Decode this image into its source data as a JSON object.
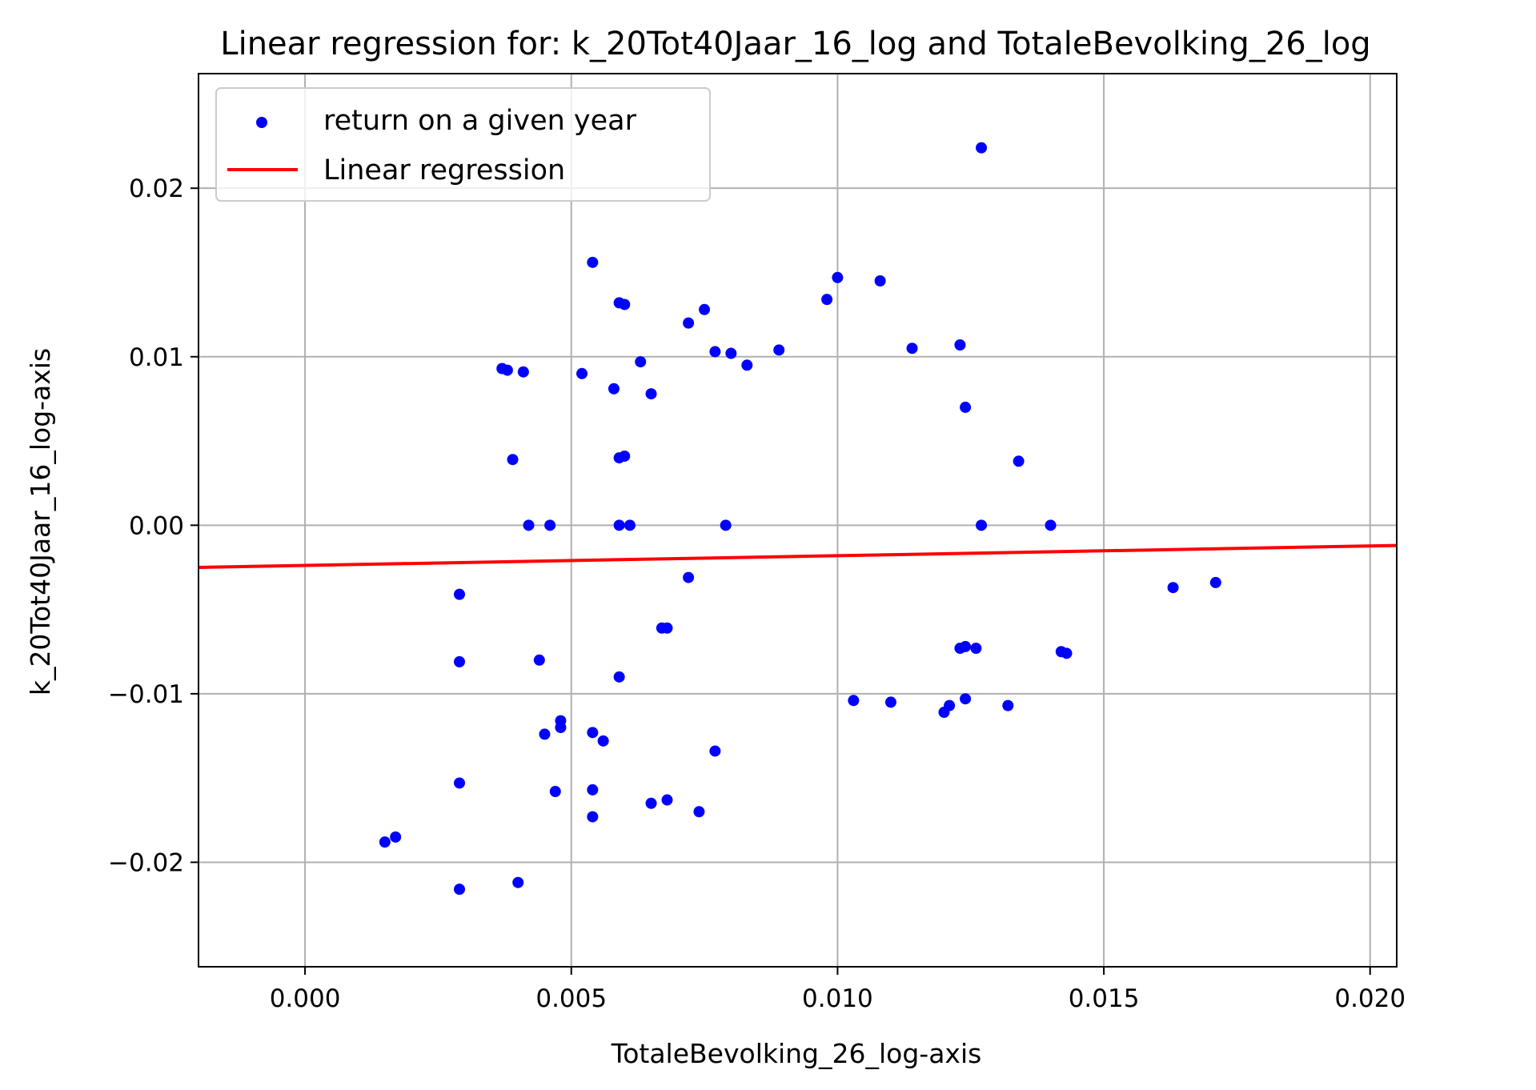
{
  "chart_data": {
    "type": "scatter",
    "title": "Linear regression for: k_20Tot40Jaar_16_log and TotaleBevolking_26_log",
    "xlabel": "TotaleBevolking_26_log-axis",
    "ylabel": "k_20Tot40Jaar_16_log-axis",
    "xlim": [
      -0.002,
      0.0205
    ],
    "ylim": [
      -0.0262,
      0.0268
    ],
    "grid": true,
    "legend_position": "upper-left",
    "x_ticks": [
      0.0,
      0.005,
      0.01,
      0.015,
      0.02
    ],
    "x_tick_labels": [
      "0.000",
      "0.005",
      "0.010",
      "0.015",
      "0.020"
    ],
    "y_ticks": [
      -0.02,
      -0.01,
      0.0,
      0.01,
      0.02
    ],
    "y_tick_labels": [
      "−0.02",
      "−0.01",
      "0.00",
      "0.01",
      "0.02"
    ],
    "series": [
      {
        "name": "return on a given year",
        "kind": "scatter",
        "color": "#0000ff",
        "points": [
          [
            0.0127,
            0.0224
          ],
          [
            0.0054,
            0.0156
          ],
          [
            0.01,
            0.0147
          ],
          [
            0.0108,
            0.0145
          ],
          [
            0.0098,
            0.0134
          ],
          [
            0.0059,
            0.0132
          ],
          [
            0.006,
            0.0131
          ],
          [
            0.0075,
            0.0128
          ],
          [
            0.0072,
            0.012
          ],
          [
            0.0123,
            0.0107
          ],
          [
            0.0114,
            0.0105
          ],
          [
            0.0089,
            0.0104
          ],
          [
            0.0077,
            0.0103
          ],
          [
            0.008,
            0.0102
          ],
          [
            0.0063,
            0.0097
          ],
          [
            0.0083,
            0.0095
          ],
          [
            0.0037,
            0.0093
          ],
          [
            0.0038,
            0.0092
          ],
          [
            0.0041,
            0.0091
          ],
          [
            0.0052,
            0.009
          ],
          [
            0.0058,
            0.0081
          ],
          [
            0.0065,
            0.0078
          ],
          [
            0.0124,
            0.007
          ],
          [
            0.006,
            0.0041
          ],
          [
            0.0059,
            0.004
          ],
          [
            0.0039,
            0.0039
          ],
          [
            0.0134,
            0.0038
          ],
          [
            0.0042,
            0.0
          ],
          [
            0.0046,
            0.0
          ],
          [
            0.0059,
            0.0
          ],
          [
            0.0061,
            0.0
          ],
          [
            0.0079,
            0.0
          ],
          [
            0.0127,
            0.0
          ],
          [
            0.014,
            0.0
          ],
          [
            0.0072,
            -0.0031
          ],
          [
            0.0163,
            -0.0037
          ],
          [
            0.0171,
            -0.0034
          ],
          [
            0.0029,
            -0.0041
          ],
          [
            0.0067,
            -0.0061
          ],
          [
            0.0068,
            -0.0061
          ],
          [
            0.0123,
            -0.0073
          ],
          [
            0.0124,
            -0.0072
          ],
          [
            0.0126,
            -0.0073
          ],
          [
            0.0142,
            -0.0075
          ],
          [
            0.0143,
            -0.0076
          ],
          [
            0.0029,
            -0.0081
          ],
          [
            0.0044,
            -0.008
          ],
          [
            0.0059,
            -0.009
          ],
          [
            0.0103,
            -0.0104
          ],
          [
            0.011,
            -0.0105
          ],
          [
            0.0124,
            -0.0103
          ],
          [
            0.0121,
            -0.0107
          ],
          [
            0.012,
            -0.0111
          ],
          [
            0.0132,
            -0.0107
          ],
          [
            0.0048,
            -0.0116
          ],
          [
            0.0048,
            -0.012
          ],
          [
            0.0054,
            -0.0123
          ],
          [
            0.0045,
            -0.0124
          ],
          [
            0.0056,
            -0.0128
          ],
          [
            0.0077,
            -0.0134
          ],
          [
            0.0029,
            -0.0153
          ],
          [
            0.0047,
            -0.0158
          ],
          [
            0.0054,
            -0.0157
          ],
          [
            0.0065,
            -0.0165
          ],
          [
            0.0068,
            -0.0163
          ],
          [
            0.0074,
            -0.017
          ],
          [
            0.0054,
            -0.0173
          ],
          [
            0.0015,
            -0.0188
          ],
          [
            0.0017,
            -0.0185
          ],
          [
            0.004,
            -0.0212
          ],
          [
            0.0029,
            -0.0216
          ]
        ]
      },
      {
        "name": "Linear regression",
        "kind": "line",
        "color": "#ff0000",
        "x": [
          -0.002,
          0.0205
        ],
        "y": [
          -0.0025,
          -0.0012
        ]
      }
    ]
  }
}
